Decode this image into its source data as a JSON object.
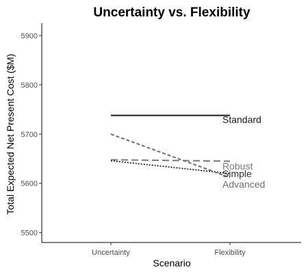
{
  "chart_data": {
    "type": "line",
    "title": "Uncertainty vs. Flexibility",
    "xlabel": "Scenario",
    "ylabel": "Total Expected Net Present Cost ($M)",
    "categories": [
      "Uncertainty",
      "Flexibility"
    ],
    "ylim": [
      5480,
      5925
    ],
    "yticks": [
      5500,
      5600,
      5700,
      5800,
      5900
    ],
    "grid": false,
    "legend": "none; series labeled directly at line ends",
    "series": [
      {
        "name": "Standard",
        "values": [
          5738,
          5738
        ],
        "color": "#1a1a1a",
        "dash": "solid"
      },
      {
        "name": "Robust",
        "values": [
          5648,
          5645
        ],
        "color": "#7a7a7a",
        "dash": "long-dash"
      },
      {
        "name": "Simple",
        "values": [
          5646,
          5620
        ],
        "color": "#333333",
        "dash": "dotted"
      },
      {
        "name": "Advanced",
        "values": [
          5700,
          5612
        ],
        "color": "#6e6e6e",
        "dash": "dashed"
      }
    ]
  }
}
